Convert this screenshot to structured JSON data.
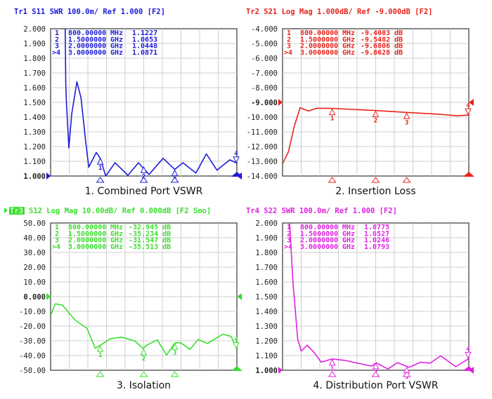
{
  "chart_data": [
    {
      "type": "line",
      "header": "Tr1 S11 SWR 100.0m/ Ref 1.000 [F2]",
      "caption": "1.  Combined Port VSWR",
      "color": "#1c1cd8",
      "xlim_mhz": [
        0,
        3000
      ],
      "ylim": [
        1.0,
        2.0
      ],
      "yticks": [
        "2.000",
        "1.900",
        "1.800",
        "1.700",
        "1.600",
        "1.500",
        "1.400",
        "1.300",
        "1.200",
        "1.100",
        "1.000"
      ],
      "ref_value": 1.0,
      "grid": true,
      "markers": [
        {
          "label": "1",
          "freq_text": "800.00000",
          "unit": "MHz",
          "value_text": "1.1227",
          "freq_mhz": 800,
          "value": 1.1227
        },
        {
          "label": "2",
          "freq_text": "1.5000000",
          "unit": "GHz",
          "value_text": "1.0653",
          "freq_mhz": 1500,
          "value": 1.0653
        },
        {
          "label": "3",
          "freq_text": "2.0000000",
          "unit": "GHz",
          "value_text": "1.0448",
          "freq_mhz": 2000,
          "value": 1.0448
        },
        {
          "label": ">4",
          "freq_text": "3.0000000",
          "unit": "GHz",
          "value_text": "1.0871",
          "freq_mhz": 3000,
          "value": 1.0871
        }
      ],
      "trace": [
        [
          234,
          2.0
        ],
        [
          245,
          1.62
        ],
        [
          255,
          1.5
        ],
        [
          294,
          1.19
        ],
        [
          340,
          1.42
        ],
        [
          423,
          1.64
        ],
        [
          490,
          1.53
        ],
        [
          566,
          1.23
        ],
        [
          615,
          1.06
        ],
        [
          736,
          1.16
        ],
        [
          800,
          1.12
        ],
        [
          887,
          1.0
        ],
        [
          1038,
          1.09
        ],
        [
          1245,
          1.005
        ],
        [
          1415,
          1.09
        ],
        [
          1585,
          1.01
        ],
        [
          1811,
          1.12
        ],
        [
          2000,
          1.045
        ],
        [
          2132,
          1.09
        ],
        [
          2340,
          1.02
        ],
        [
          2509,
          1.15
        ],
        [
          2679,
          1.04
        ],
        [
          2887,
          1.11
        ],
        [
          3000,
          1.087
        ]
      ]
    },
    {
      "type": "line",
      "header": "Tr2 S21 Log Mag 1.000dB/ Ref -9.000dB [F2]",
      "caption": "2. Insertion Loss",
      "color": "#e8231b",
      "xlim_mhz": [
        0,
        3000
      ],
      "ylim": [
        -14.0,
        -4.0
      ],
      "yticks": [
        "-4.000",
        "-5.000",
        "-6.000",
        "-7.000",
        "-8.000",
        "-9.000",
        "-10.000",
        "-11.000",
        "-12.000",
        "-13.000",
        "-14.000"
      ],
      "ref_value": -9.0,
      "grid": true,
      "markers": [
        {
          "label": "1",
          "freq_text": "800.00000",
          "unit": "MHz",
          "value_text": "-9.4083 dB",
          "freq_mhz": 800,
          "value": -9.4083
        },
        {
          "label": "2",
          "freq_text": "1.5000000",
          "unit": "GHz",
          "value_text": "-9.5482 dB",
          "freq_mhz": 1500,
          "value": -9.5482
        },
        {
          "label": "3",
          "freq_text": "2.0000000",
          "unit": "GHz",
          "value_text": "-9.6806 dB",
          "freq_mhz": 2000,
          "value": -9.6806
        },
        {
          "label": ">4",
          "freq_text": "3.0000000",
          "unit": "GHz",
          "value_text": "-9.8628 dB",
          "freq_mhz": 3000,
          "value": -9.8628
        }
      ],
      "trace": [
        [
          0,
          -13.16
        ],
        [
          94,
          -12.37
        ],
        [
          189,
          -10.62
        ],
        [
          283,
          -9.36
        ],
        [
          415,
          -9.59
        ],
        [
          547,
          -9.4
        ],
        [
          800,
          -9.41
        ],
        [
          1491,
          -9.55
        ],
        [
          2000,
          -9.68
        ],
        [
          2509,
          -9.8
        ],
        [
          2811,
          -9.91
        ],
        [
          3000,
          -9.86
        ]
      ]
    },
    {
      "type": "line",
      "header_prefix": "Tr3",
      "header": "S12 Log Mag 10.00dB/ Ref 0.000dB [F2 Smo]",
      "caption": "3. Isolation",
      "color": "#3ade2e",
      "xlim_mhz": [
        0,
        3000
      ],
      "ylim": [
        -50,
        50
      ],
      "yticks": [
        "50.00",
        "40.00",
        "30.00",
        "20.00",
        "10.00",
        "0.000",
        "-10.00",
        "-20.00",
        "-30.00",
        "-40.00",
        "-50.00"
      ],
      "ref_value": 0,
      "grid": true,
      "markers": [
        {
          "label": "1",
          "freq_text": "800.00000",
          "unit": "MHz",
          "value_text": "-32.945 dB",
          "freq_mhz": 800,
          "value": -32.945
        },
        {
          "label": "2",
          "freq_text": "1.5000000",
          "unit": "GHz",
          "value_text": "-35.234 dB",
          "freq_mhz": 1500,
          "value": -35.234
        },
        {
          "label": "3",
          "freq_text": "2.0000000",
          "unit": "GHz",
          "value_text": "-31.547 dB",
          "freq_mhz": 2000,
          "value": -31.547
        },
        {
          "label": ">4",
          "freq_text": "3.0000000",
          "unit": "GHz",
          "value_text": "-35.513 dB",
          "freq_mhz": 3000,
          "value": -35.513
        }
      ],
      "trace": [
        [
          0,
          -12.8
        ],
        [
          75,
          -4.9
        ],
        [
          189,
          -5.7
        ],
        [
          396,
          -16
        ],
        [
          585,
          -21.5
        ],
        [
          717,
          -35
        ],
        [
          800,
          -33
        ],
        [
          962,
          -28.6
        ],
        [
          1151,
          -27.5
        ],
        [
          1358,
          -30.2
        ],
        [
          1491,
          -35.2
        ],
        [
          1547,
          -33
        ],
        [
          1717,
          -29.4
        ],
        [
          1868,
          -39.7
        ],
        [
          2000,
          -31.5
        ],
        [
          2094,
          -31.3
        ],
        [
          2245,
          -35.8
        ],
        [
          2377,
          -29.1
        ],
        [
          2528,
          -31.8
        ],
        [
          2774,
          -25.5
        ],
        [
          2906,
          -27
        ],
        [
          3000,
          -35.5
        ]
      ]
    },
    {
      "type": "line",
      "header": "Tr4 S22 SWR 100.0m/ Ref 1.000 [F2]",
      "caption": "4. Distribution  Port VSWR",
      "color": "#e021e0",
      "xlim_mhz": [
        0,
        3000
      ],
      "ylim": [
        1.0,
        2.0
      ],
      "yticks": [
        "2.000",
        "1.900",
        "1.800",
        "1.700",
        "1.600",
        "1.500",
        "1.400",
        "1.300",
        "1.200",
        "1.100",
        "1.000"
      ],
      "ref_value": 1.0,
      "grid": true,
      "markers": [
        {
          "label": "1",
          "freq_text": "800.00000",
          "unit": "MHz",
          "value_text": "1.0775",
          "freq_mhz": 800,
          "value": 1.0775
        },
        {
          "label": "2",
          "freq_text": "1.5000000",
          "unit": "GHz",
          "value_text": "1.0527",
          "freq_mhz": 1500,
          "value": 1.0527
        },
        {
          "label": "3",
          "freq_text": "2.0000000",
          "unit": "GHz",
          "value_text": "1.0246",
          "freq_mhz": 2000,
          "value": 1.0246
        },
        {
          "label": ">4",
          "freq_text": "3.0000000",
          "unit": "GHz",
          "value_text": "1.0793",
          "freq_mhz": 3000,
          "value": 1.0793
        }
      ],
      "trace": [
        [
          113,
          2.0
        ],
        [
          170,
          1.585
        ],
        [
          245,
          1.21
        ],
        [
          302,
          1.13
        ],
        [
          396,
          1.17
        ],
        [
          509,
          1.12
        ],
        [
          623,
          1.055
        ],
        [
          800,
          1.077
        ],
        [
          1000,
          1.067
        ],
        [
          1434,
          1.028
        ],
        [
          1510,
          1.05
        ],
        [
          1698,
          1.008
        ],
        [
          1849,
          1.052
        ],
        [
          2038,
          1.02
        ],
        [
          2226,
          1.055
        ],
        [
          2377,
          1.048
        ],
        [
          2547,
          1.098
        ],
        [
          2792,
          1.024
        ],
        [
          3000,
          1.079
        ]
      ]
    }
  ]
}
